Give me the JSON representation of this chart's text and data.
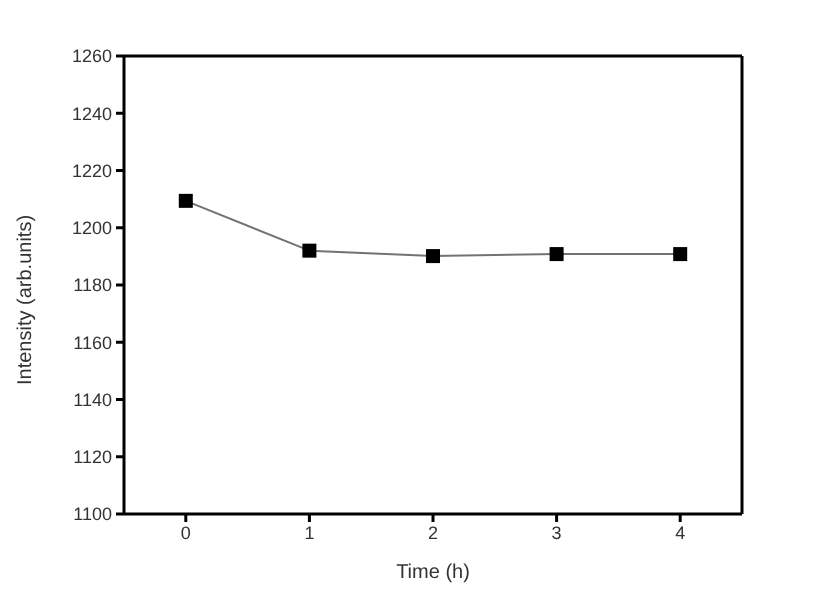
{
  "chart_data": {
    "type": "line",
    "xlabel": "Time (h)",
    "ylabel": "Intensity (arb.units)",
    "x": [
      0,
      1,
      2,
      3,
      4
    ],
    "series": [
      {
        "color": "#000000",
        "values": [
          1209.4,
          1192,
          1190.1,
          1190.8,
          1190.8
        ]
      }
    ],
    "xlim": [
      -0.5,
      4.5
    ],
    "xticks": [
      0,
      1,
      2,
      3,
      4
    ],
    "ylim": [
      1100,
      1260
    ],
    "yticks": [
      1100,
      1120,
      1140,
      1160,
      1180,
      1200,
      1220,
      1240,
      1260
    ],
    "marker": "square",
    "line_style": "solid",
    "grid": false,
    "legend": false
  }
}
